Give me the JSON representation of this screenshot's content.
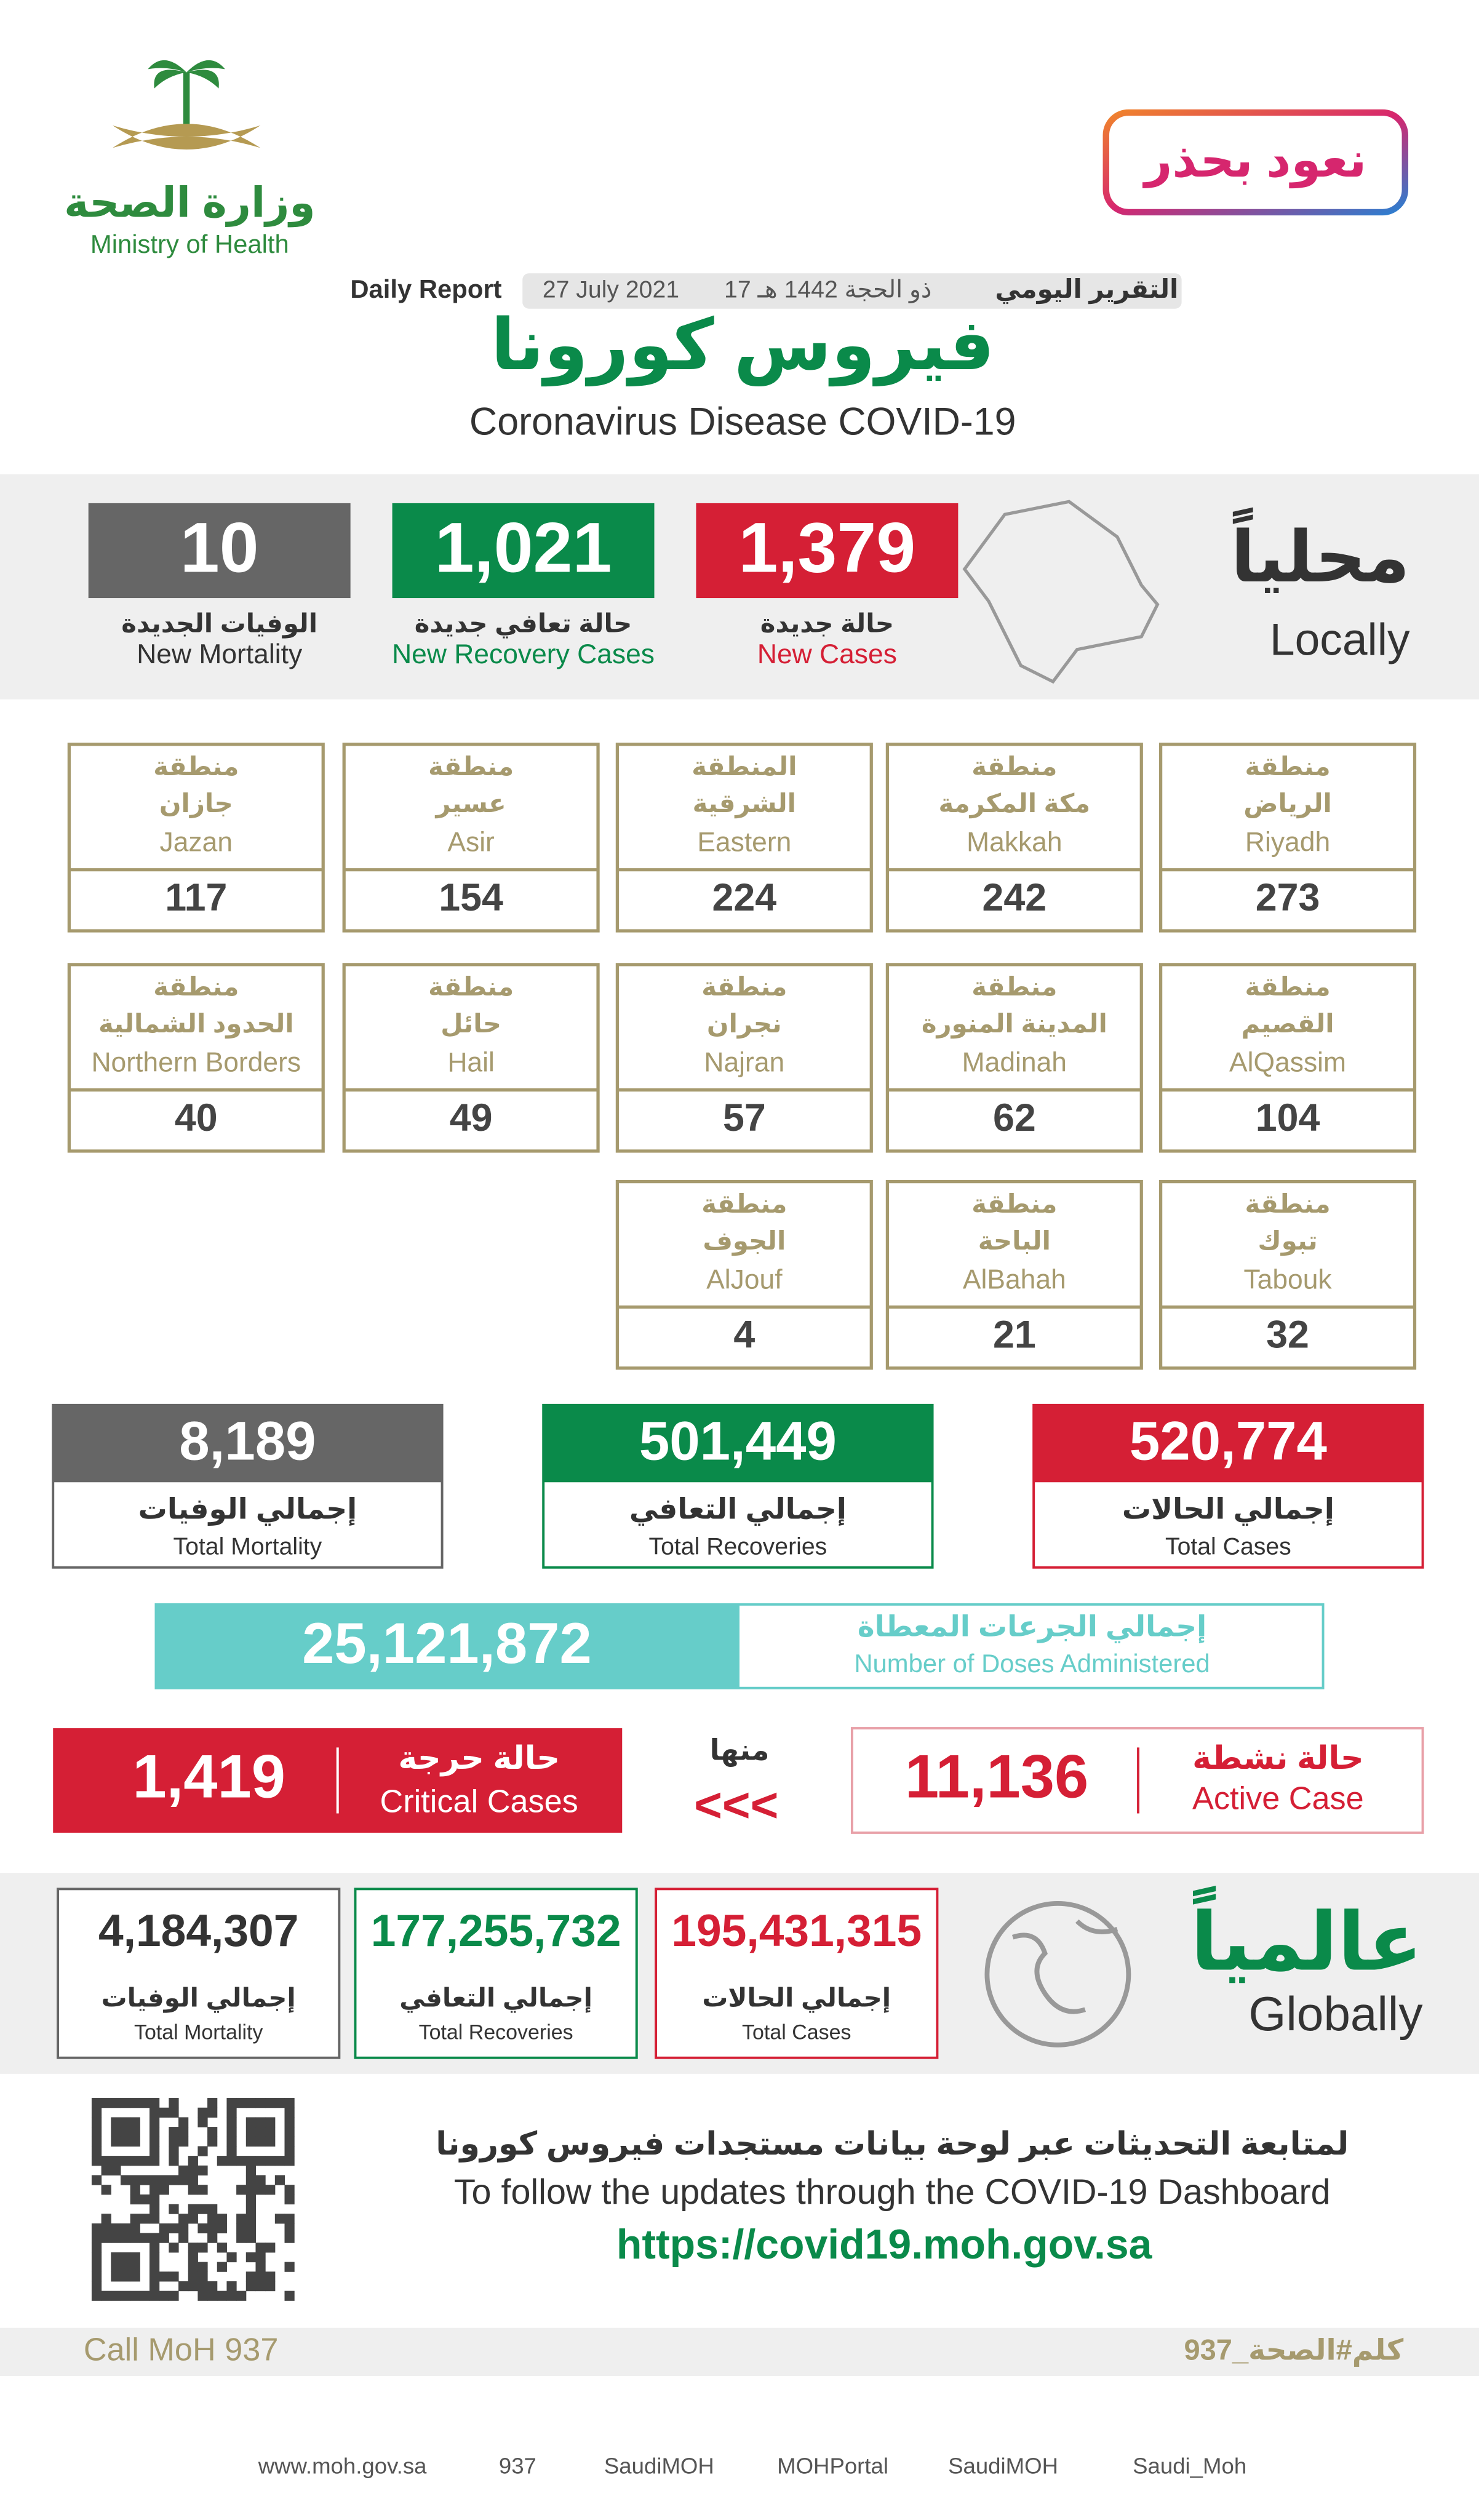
{
  "header": {
    "ministry_ar": "وزارة الصحة",
    "ministry_en": "Ministry of Health",
    "campaign": "نعود بحذر",
    "report_ar": "التقرير اليومي",
    "date_hijri": "17 ذو الحجة 1442 هـ",
    "date_greg": "27 July 2021",
    "report_en": "Daily Report",
    "title_ar": "فيروس كورونا",
    "title_en": "Coronavirus Disease COVID-19"
  },
  "locally": {
    "label_ar": "محلياً",
    "label_en": "Locally",
    "stats": [
      {
        "value": "1,379",
        "label_ar": "حالة جديدة",
        "label_en": "New Cases"
      },
      {
        "value": "1,021",
        "label_ar": "حالة تعافي جديدة",
        "label_en": "New Recovery Cases"
      },
      {
        "value": "10",
        "label_ar": "الوفيات الجديدة",
        "label_en": "New Mortality"
      }
    ]
  },
  "regions": [
    {
      "prefix": "منطقة",
      "name_ar": "الرياض",
      "name_en": "Riyadh",
      "value": "273"
    },
    {
      "prefix": "منطقة",
      "name_ar": "مكة المكرمة",
      "name_en": "Makkah",
      "value": "242"
    },
    {
      "prefix": "المنطقة",
      "name_ar": "الشرقية",
      "name_en": "Eastern",
      "value": "224"
    },
    {
      "prefix": "منطقة",
      "name_ar": "عسير",
      "name_en": "Asir",
      "value": "154"
    },
    {
      "prefix": "منطقة",
      "name_ar": "جازان",
      "name_en": "Jazan",
      "value": "117"
    },
    {
      "prefix": "منطقة",
      "name_ar": "القصيم",
      "name_en": "AlQassim",
      "value": "104"
    },
    {
      "prefix": "منطقة",
      "name_ar": "المدينة المنورة",
      "name_en": "Madinah",
      "value": "62"
    },
    {
      "prefix": "منطقة",
      "name_ar": "نجران",
      "name_en": "Najran",
      "value": "57"
    },
    {
      "prefix": "منطقة",
      "name_ar": "حائل",
      "name_en": "Hail",
      "value": "49"
    },
    {
      "prefix": "منطقة",
      "name_ar": "الحدود الشمالية",
      "name_en": "Northern Borders",
      "value": "40"
    },
    {
      "prefix": "منطقة",
      "name_ar": "تبوك",
      "name_en": "Tabouk",
      "value": "32"
    },
    {
      "prefix": "منطقة",
      "name_ar": "الباحة",
      "name_en": "AlBahah",
      "value": "21"
    },
    {
      "prefix": "منطقة",
      "name_ar": "الجوف",
      "name_en": "AlJouf",
      "value": "4"
    }
  ],
  "totals": [
    {
      "value": "520,774",
      "label_ar": "إجمالي الحالات",
      "label_en": "Total Cases"
    },
    {
      "value": "501,449",
      "label_ar": "إجمالي التعافي",
      "label_en": "Total Recoveries"
    },
    {
      "value": "8,189",
      "label_ar": "إجمالي الوفيات",
      "label_en": "Total Mortality"
    }
  ],
  "doses": {
    "value": "25,121,872",
    "label_ar": "إجمالي الجرعات المعطاة",
    "label_en": "Number of Doses Administered"
  },
  "active": {
    "value": "11,136",
    "label_ar": "حالة نشطة",
    "label_en": "Active Case"
  },
  "of_which": "منها",
  "arrows": "<<<",
  "critical": {
    "value": "1,419",
    "label_ar": "حالة حرجة",
    "label_en": "Critical Cases"
  },
  "globally": {
    "label_ar": "عالمياً",
    "label_en": "Globally",
    "stats": [
      {
        "value": "195,431,315",
        "label_ar": "إجمالي الحالات",
        "label_en": "Total Cases"
      },
      {
        "value": "177,255,732",
        "label_ar": "إجمالي التعافي",
        "label_en": "Total Recoveries"
      },
      {
        "value": "4,184,307",
        "label_ar": "إجمالي الوفيات",
        "label_en": "Total Mortality"
      }
    ]
  },
  "follow": {
    "text_ar": "لمتابعة التحديثات عبر لوحة بيانات مستجدات فيروس كورونا",
    "text_en": "To follow the updates through the COVID-19 Dashboard",
    "url": "https://covid19.moh.gov.sa"
  },
  "call": "Call MoH 937",
  "hashtag": "كلم#الصحة_937",
  "links": [
    "www.moh.gov.sa",
    "937",
    "SaudiMOH",
    "MOHPortal",
    "SaudiMOH",
    "Saudi_Moh"
  ]
}
